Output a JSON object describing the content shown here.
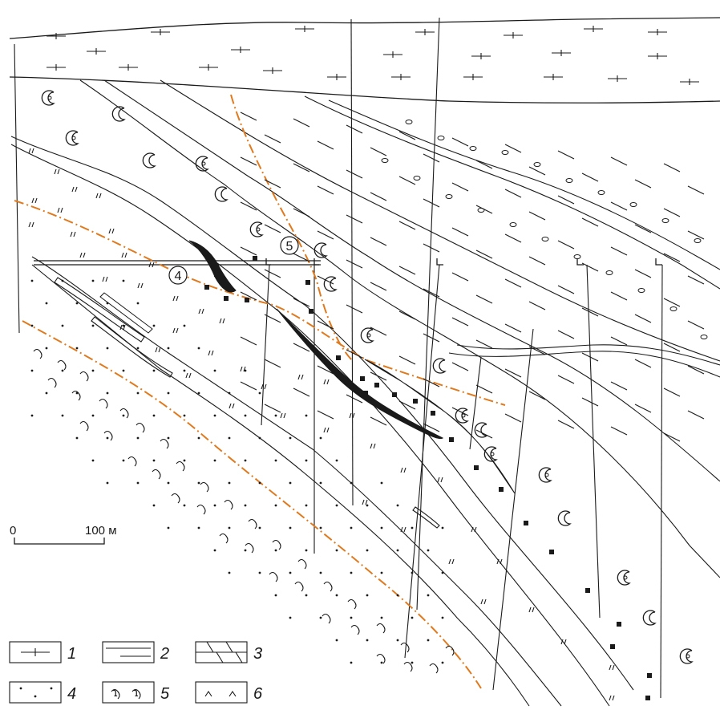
{
  "scale_bar": {
    "zero": "0",
    "distance": "100 м"
  },
  "zone_labels": [
    "4",
    "5"
  ],
  "legend": {
    "items": [
      {
        "number": "1",
        "pattern": "horizontal-dash-cross"
      },
      {
        "number": "2",
        "pattern": "horizontal-lines"
      },
      {
        "number": "3",
        "pattern": "brick-diagonal"
      },
      {
        "number": "4",
        "pattern": "dots"
      },
      {
        "number": "5",
        "pattern": "wavy-marks"
      },
      {
        "number": "6",
        "pattern": "carets"
      }
    ]
  },
  "colors": {
    "line": "#1a1a1a",
    "fault_trace": "#e07a1f",
    "ore_body": "#1a1a1a"
  }
}
